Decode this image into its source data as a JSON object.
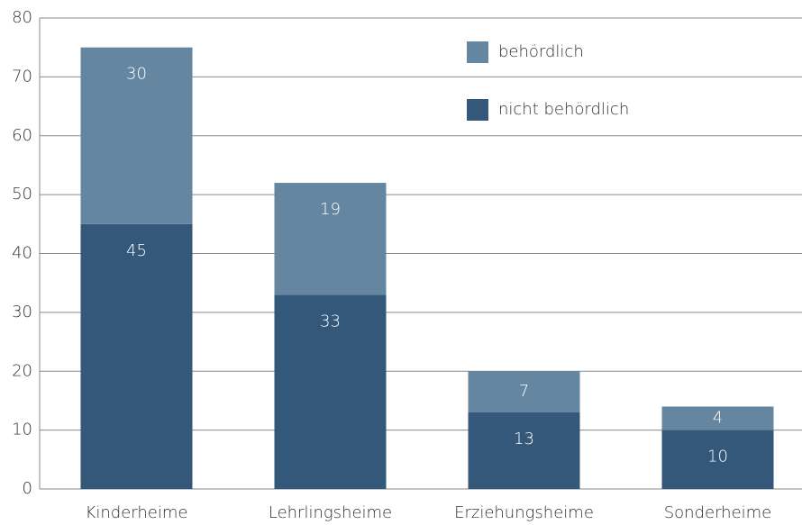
{
  "chart_data": {
    "type": "stacked-bar",
    "categories": [
      "Kinderheime",
      "Lehrlingsheime",
      "Erziehungsheime",
      "Sonderheime"
    ],
    "series": [
      {
        "name": "nicht behördlich",
        "color": "#33587a",
        "values": [
          45,
          33,
          13,
          10
        ]
      },
      {
        "name": "behördlich",
        "color": "#6586a0",
        "values": [
          30,
          19,
          7,
          4
        ]
      }
    ],
    "ylim": [
      0,
      80
    ],
    "yticks": [
      0,
      10,
      20,
      30,
      40,
      50,
      60,
      70,
      80
    ],
    "grid": true
  }
}
